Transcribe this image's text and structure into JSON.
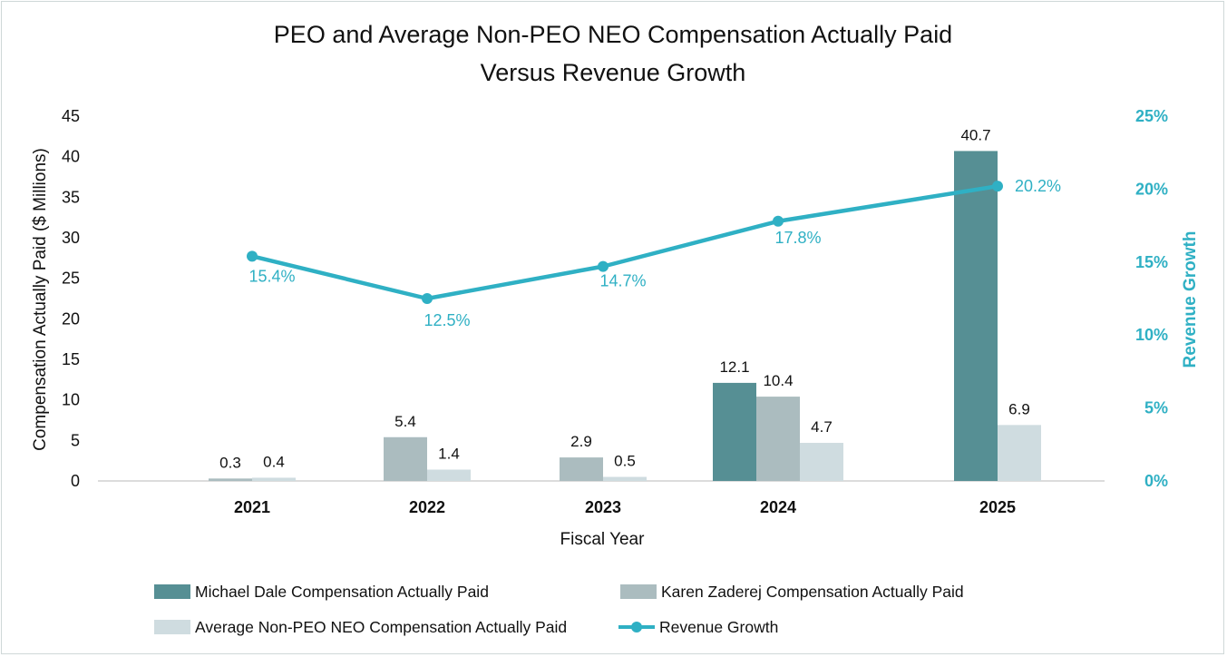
{
  "chart_data": {
    "type": "bar",
    "title_lines": [
      "PEO and Average Non-PEO NEO Compensation Actually Paid",
      "Versus Revenue Growth"
    ],
    "xlabel": "Fiscal Year",
    "ylabel": "Compensation Actually Paid ($ Millions)",
    "y2label": "Revenue Growth",
    "categories": [
      "2021",
      "2022",
      "2023",
      "2024",
      "2025"
    ],
    "ylim": [
      0,
      45
    ],
    "yticks": [
      "0",
      "5",
      "10",
      "15",
      "20",
      "25",
      "30",
      "35",
      "40",
      "45"
    ],
    "y2lim": [
      0,
      25
    ],
    "y2ticks": [
      "0%",
      "5%",
      "10%",
      "15%",
      "20%",
      "25%"
    ],
    "series": [
      {
        "name": "Michael Dale Compensation Actually Paid",
        "type": "bar",
        "color": "#568f94",
        "values": [
          null,
          null,
          null,
          12.1,
          40.7
        ],
        "labels": [
          "",
          "",
          "",
          "12.1",
          "40.7"
        ]
      },
      {
        "name": "Karen Zaderej Compensation Actually Paid",
        "type": "bar",
        "color": "#abbcbf",
        "values": [
          0.3,
          5.4,
          2.9,
          10.4,
          null
        ],
        "labels": [
          "0.3",
          "5.4",
          "2.9",
          "10.4",
          ""
        ]
      },
      {
        "name": "Average Non-PEO NEO Compensation Actually Paid",
        "type": "bar",
        "color": "#cfdce0",
        "values": [
          0.4,
          1.4,
          0.5,
          4.7,
          6.9
        ],
        "labels": [
          "0.4",
          "1.4",
          "0.5",
          "4.7",
          "6.9"
        ]
      },
      {
        "name": "Revenue Growth",
        "type": "line",
        "color": "#2fb0c4",
        "axis": "right",
        "values": [
          15.4,
          12.5,
          14.7,
          17.8,
          20.2
        ],
        "labels": [
          "15.4%",
          "12.5%",
          "14.7%",
          "17.8%",
          "20.2%"
        ]
      }
    ]
  }
}
